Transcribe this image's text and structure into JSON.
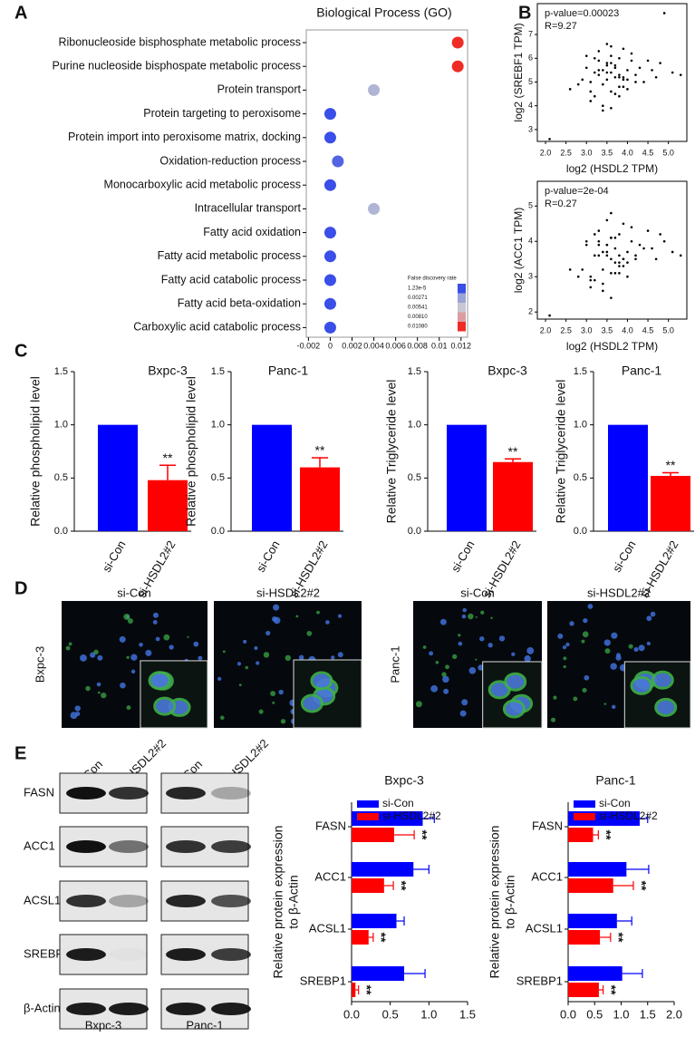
{
  "panel_labels": [
    "A",
    "B",
    "C",
    "D",
    "E"
  ],
  "chart_data": [
    {
      "type": "dot",
      "title": "Biological Process (GO)",
      "categories": [
        "Ribonucleoside bisphosphate metabolic process",
        "Purine nucleoside bisphospate metabolic process",
        "Protein transport",
        "Protein targeting to peroxisome",
        "Protein import into peroxisome matrix, docking",
        "Oxidation-reduction process",
        "Monocarboxylic acid metabolic process",
        "Intracellular transport",
        "Fatty acid oxidation",
        "Fatty acid metabolic process",
        "Fatty acid catabolic process",
        "Fatty acid beta-oxidation",
        "Carboxylic acid catabolic process"
      ],
      "values": [
        0.0117,
        0.0117,
        0.004,
        0,
        0,
        0.0007,
        0,
        0.004,
        0,
        0,
        0,
        0,
        0
      ],
      "xlim": [
        -0.0022,
        0.0126
      ],
      "xticks": [
        -0.002,
        0,
        0.002,
        0.004,
        0.006,
        0.008,
        0.01,
        0.012
      ],
      "legend": {
        "title": "False discovery rate",
        "ticks": [
          {
            "value": 1.23e-05,
            "label": "1.23e-5"
          },
          0.00271,
          0.00541,
          {
            "value": 0.0081,
            "label": "0.00810"
          },
          {
            "value": 0.0108,
            "label": "0.01080"
          }
        ],
        "colors": [
          "#3a4ee8",
          "#9aa4d6",
          "#c8c8d4",
          "#dc9da2",
          "#ef2b25"
        ]
      }
    },
    {
      "type": "scatter",
      "xlabel": "log2 (HSDL2 TPM)",
      "ylabel": "log2 (SREBF1 TPM)",
      "annotations": [
        "p-value=0.00023",
        "R=9.27"
      ],
      "color": "#000000",
      "x": [
        3.2,
        3.5,
        3.8,
        3.4,
        3.6,
        4.0,
        3.1,
        3.7,
        3.3,
        3.9,
        4.2,
        3.5,
        3.0,
        3.6,
        3.8,
        4.1,
        3.4,
        3.2,
        3.7,
        3.9,
        4.4,
        3.3,
        3.6,
        2.9,
        4.0,
        3.5,
        3.8,
        4.3,
        3.1,
        3.6,
        3.4,
        3.9,
        4.6,
        3.2,
        3.7,
        3.5,
        4.1,
        2.8,
        3.6,
        3.3,
        4.8,
        3.8,
        3.0,
        4.2,
        3.5,
        3.9,
        3.4,
        3.7,
        5.1,
        2.6,
        3.6,
        4.0,
        3.3,
        3.8,
        5.3,
        4.5,
        3.1,
        2.1,
        4.9,
        4.7
      ],
      "y": [
        5.4,
        5.8,
        5.2,
        4.9,
        6.1,
        5.5,
        5.0,
        5.7,
        6.3,
        4.8,
        5.3,
        5.1,
        5.6,
        4.6,
        6.0,
        5.9,
        5.5,
        4.4,
        5.2,
        6.4,
        5.0,
        5.9,
        5.4,
        5.1,
        4.7,
        6.6,
        5.3,
        5.6,
        4.2,
        5.8,
        3.8,
        5.1,
        5.5,
        6.0,
        4.5,
        5.4,
        6.2,
        4.9,
        3.9,
        5.3,
        5.8,
        4.4,
        6.1,
        5.0,
        5.7,
        5.2,
        4.0,
        5.6,
        5.4,
        4.7,
        6.5,
        5.1,
        5.5,
        4.8,
        5.3,
        5.9,
        4.6,
        2.6,
        7.9,
        5.2
      ],
      "xlim": [
        1.8,
        5.45
      ],
      "ylim": [
        2.5,
        8.3
      ],
      "xticks": [
        {
          "value": 2,
          "label": "2.0"
        },
        2.5,
        {
          "value": 3,
          "label": "3.0"
        },
        3.5,
        {
          "value": 4,
          "label": "4.0"
        },
        4.5,
        {
          "value": 5,
          "label": "5.0"
        }
      ],
      "yticks": [
        3,
        4,
        5,
        6,
        7
      ]
    },
    {
      "type": "scatter",
      "xlabel": "log2 (HSDL2 TPM)",
      "ylabel": "log2 (ACC1 TPM)",
      "annotations": [
        "p-value=2e-04",
        "R=0.27"
      ],
      "color": "#000000",
      "x": [
        3.2,
        3.5,
        3.8,
        3.4,
        3.6,
        4.0,
        3.1,
        3.7,
        3.3,
        3.9,
        4.2,
        3.5,
        3.0,
        3.6,
        3.8,
        4.1,
        3.4,
        3.2,
        3.7,
        3.9,
        4.4,
        3.3,
        3.6,
        2.9,
        4.0,
        3.5,
        3.8,
        4.3,
        3.1,
        3.6,
        3.4,
        3.9,
        4.6,
        3.2,
        3.7,
        3.5,
        4.1,
        2.8,
        3.6,
        3.3,
        4.8,
        3.8,
        3.0,
        4.2,
        3.5,
        3.9,
        3.4,
        3.7,
        5.1,
        2.6,
        3.6,
        4.0,
        3.3,
        3.8,
        5.3,
        4.5,
        3.1,
        2.1,
        4.9,
        4.7
      ],
      "y": [
        3.6,
        3.9,
        3.4,
        3.2,
        4.1,
        3.7,
        3.0,
        3.8,
        4.3,
        3.3,
        3.5,
        3.6,
        3.9,
        3.1,
        4.2,
        4.0,
        3.7,
        2.9,
        3.4,
        4.5,
        3.8,
        4.0,
        3.5,
        3.2,
        3.0,
        4.6,
        3.6,
        3.9,
        2.7,
        4.1,
        2.6,
        3.5,
        3.8,
        4.2,
        3.1,
        3.7,
        4.4,
        3.0,
        2.4,
        3.6,
        4.2,
        3.3,
        4.0,
        3.6,
        3.9,
        3.5,
        2.8,
        4.1,
        3.7,
        3.2,
        4.8,
        3.4,
        3.9,
        3.1,
        3.6,
        4.3,
        2.9,
        1.9,
        4.0,
        3.5
      ],
      "xlim": [
        1.8,
        5.45
      ],
      "ylim": [
        1.8,
        5.7
      ],
      "xticks": [
        {
          "value": 2,
          "label": "2.0"
        },
        2.5,
        {
          "value": 3,
          "label": "3.0"
        },
        3.5,
        {
          "value": 4,
          "label": "4.0"
        },
        4.5,
        {
          "value": 5,
          "label": "5.0"
        }
      ],
      "yticks": [
        2,
        3,
        4,
        5
      ]
    },
    {
      "type": "bar",
      "title": "Bxpc-3",
      "ylabel": "Relative phospholipid level",
      "categories": [
        "si-Con",
        "si-HSDL2#2"
      ],
      "values": [
        1,
        0.48
      ],
      "errors": [
        null,
        0.14
      ],
      "colors": [
        "#0000ff",
        "#ff0000"
      ],
      "significance": [
        null,
        "**"
      ],
      "ylim": [
        0,
        1.5
      ],
      "yticks": [
        {
          "value": 0,
          "label": "0.0"
        },
        0.5,
        {
          "value": 1,
          "label": "1.0"
        },
        1.5
      ]
    },
    {
      "type": "bar",
      "title": "Panc-1",
      "ylabel": "Relative phospholipid level",
      "categories": [
        "si-Con",
        "si-HSDL2#2"
      ],
      "values": [
        1,
        0.6
      ],
      "errors": [
        null,
        0.09
      ],
      "colors": [
        "#0000ff",
        "#ff0000"
      ],
      "significance": [
        null,
        "**"
      ],
      "ylim": [
        0,
        1.5
      ],
      "yticks": [
        {
          "value": 0,
          "label": "0.0"
        },
        0.5,
        {
          "value": 1,
          "label": "1.0"
        },
        1.5
      ]
    },
    {
      "type": "bar",
      "title": "Bxpc-3",
      "ylabel": "Relative Triglyceride level",
      "categories": [
        "si-Con",
        "si-HSDL2#2"
      ],
      "values": [
        1,
        0.65
      ],
      "errors": [
        null,
        0.03
      ],
      "colors": [
        "#0000ff",
        "#ff0000"
      ],
      "significance": [
        null,
        "**"
      ],
      "ylim": [
        0,
        1.5
      ],
      "yticks": [
        {
          "value": 0,
          "label": "0.0"
        },
        0.5,
        {
          "value": 1,
          "label": "1.0"
        },
        1.5
      ]
    },
    {
      "type": "bar",
      "title": "Panc-1",
      "ylabel": "Relative Triglyceride level",
      "categories": [
        "si-Con",
        "si-HSDL2#2"
      ],
      "values": [
        1,
        0.52
      ],
      "errors": [
        null,
        0.03
      ],
      "colors": [
        "#0000ff",
        "#ff0000"
      ],
      "significance": [
        null,
        "**"
      ],
      "ylim": [
        0,
        1.5
      ],
      "yticks": [
        {
          "value": 0,
          "label": "0.0"
        },
        0.5,
        {
          "value": 1,
          "label": "1.0"
        },
        1.5
      ]
    },
    {
      "type": "barh",
      "title": "Bxpc-3",
      "ylabel": [
        "Relative protein expression",
        "to β-Actin"
      ],
      "categories": [
        "FASN",
        "ACC1",
        "ACSL1",
        "SREBP1"
      ],
      "series": [
        {
          "name": "si-Con",
          "color": "#0000ff",
          "values": [
            0.92,
            0.8,
            0.58,
            0.68
          ],
          "errors": [
            0.15,
            0.2,
            0.1,
            0.27
          ]
        },
        {
          "name": "si-HSDL2#2",
          "color": "#ff0000",
          "values": [
            0.55,
            0.42,
            0.22,
            0.05
          ],
          "errors": [
            0.26,
            0.12,
            0.06,
            0.04
          ],
          "significance": [
            "**",
            "**",
            "**",
            "**"
          ]
        }
      ],
      "xlim": [
        0,
        1.5
      ],
      "xticks": [
        {
          "value": 0,
          "label": "0.0"
        },
        0.5,
        {
          "value": 1,
          "label": "1.0"
        },
        1.5
      ]
    },
    {
      "type": "barh",
      "title": "Panc-1",
      "ylabel": [
        "Relative protein expression",
        "to β-Actin"
      ],
      "categories": [
        "FASN",
        "ACC1",
        "ACSL1",
        "SREBP1"
      ],
      "series": [
        {
          "name": "si-Con",
          "color": "#0000ff",
          "values": [
            1.35,
            1.1,
            0.92,
            1.02
          ],
          "errors": [
            0.15,
            0.42,
            0.28,
            0.38
          ]
        },
        {
          "name": "si-HSDL2#2",
          "color": "#ff0000",
          "values": [
            0.47,
            0.85,
            0.6,
            0.58
          ],
          "errors": [
            0.1,
            0.38,
            0.2,
            0.08
          ],
          "significance": [
            "**",
            "**",
            "**",
            "**"
          ]
        }
      ],
      "xlim": [
        0,
        2
      ],
      "xticks": [
        {
          "value": 0,
          "label": "0.0"
        },
        0.5,
        {
          "value": 1,
          "label": "1.0"
        },
        1.5,
        {
          "value": 2,
          "label": "2.0"
        }
      ]
    }
  ],
  "microscopy": {
    "columns": [
      "si-Con",
      "si-HSDL2#2",
      "si-Con",
      "si-HSDL2#2"
    ],
    "rows": [
      "Bxpc-3",
      "Panc-1"
    ]
  },
  "western_blot": {
    "lanes": [
      "si-Con",
      "si-HSDL2#2",
      "si-Con",
      "si-HSDL2#2"
    ],
    "proteins": [
      "FASN",
      "ACC1",
      "ACSL1",
      "SREBP1",
      "β-Actin"
    ],
    "cell_lines": [
      "Bxpc-3",
      "Panc-1"
    ]
  }
}
